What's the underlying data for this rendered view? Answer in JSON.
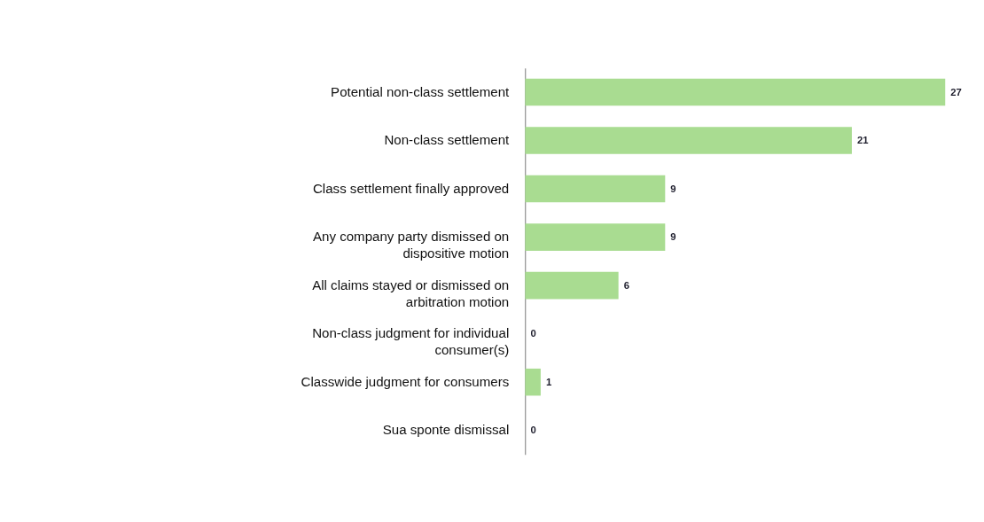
{
  "chart_data": {
    "type": "bar",
    "orientation": "horizontal",
    "categories": [
      "Potential non-class settlement",
      "Non-class settlement",
      "Class settlement finally approved",
      "Any company party dismissed on dispositive motion",
      "All claims stayed or dismissed on arbitration motion",
      "Non-class judgment for individual consumer(s)",
      "Classwide judgment for consumers",
      "Sua sponte dismissal"
    ],
    "values": [
      27,
      21,
      9,
      9,
      6,
      0,
      1,
      0
    ],
    "color": "#a9dc91",
    "data_labels": true
  }
}
